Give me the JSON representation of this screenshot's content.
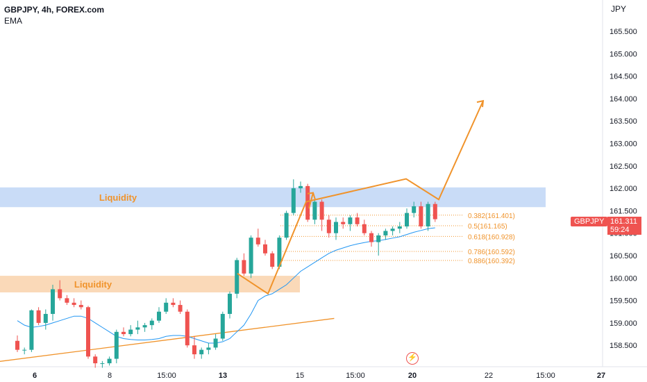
{
  "legend": {
    "symbol": "GBPJPY, 4h, FOREX.com",
    "indicator": "EMA"
  },
  "currency": "JPY",
  "symbol_tag": "GBPJPY",
  "last_price": "161.311",
  "countdown": "59:24",
  "event_icon": "bolt-icon",
  "colors": {
    "up": "#26a69a",
    "down": "#ef5350",
    "ema": "#2196f3",
    "annotation": "#f0932b",
    "zone_blue": "#bbd3f5",
    "zone_orange": "#f9cfa6"
  },
  "chart_data": {
    "type": "candlestick",
    "ylim": [
      158.3,
      166.0
    ],
    "y_ticks": [
      "165.500",
      "165.000",
      "164.500",
      "164.000",
      "163.500",
      "163.000",
      "162.500",
      "162.000",
      "161.500",
      "161.000",
      "160.500",
      "160.000",
      "159.500",
      "159.000",
      "158.500"
    ],
    "x_ticks": [
      {
        "label": "6",
        "bold": true
      },
      {
        "label": "8",
        "bold": false
      },
      {
        "label": "15:00",
        "bold": false
      },
      {
        "label": "13",
        "bold": true
      },
      {
        "label": "15",
        "bold": false
      },
      {
        "label": "15:00",
        "bold": false
      },
      {
        "label": "20",
        "bold": true
      },
      {
        "label": "22",
        "bold": false
      },
      {
        "label": "15:00",
        "bold": false
      },
      {
        "label": "27",
        "bold": true
      }
    ],
    "zones": [
      {
        "label": "Liquidity",
        "top": 162.02,
        "bottom": 161.58,
        "color": "blue"
      },
      {
        "label": "Liquidity",
        "top": 160.05,
        "bottom": 159.68,
        "color": "orange"
      }
    ],
    "fib_levels": [
      {
        "label": "0.382(161.401)",
        "value": 161.401
      },
      {
        "label": "0.5(161.165)",
        "value": 161.165
      },
      {
        "label": "0.618(160.928)",
        "value": 160.928
      },
      {
        "label": "0.786(160.592)",
        "value": 160.592
      },
      {
        "label": "0.886(160.392)",
        "value": 160.392
      }
    ],
    "candles": [
      [
        158.6,
        158.72,
        158.35,
        158.4
      ],
      [
        158.4,
        158.45,
        158.3,
        158.4
      ],
      [
        158.4,
        159.3,
        158.35,
        159.28
      ],
      [
        159.28,
        159.35,
        158.95,
        159.0
      ],
      [
        159.0,
        159.3,
        158.85,
        159.2
      ],
      [
        159.2,
        159.85,
        159.05,
        159.75
      ],
      [
        159.75,
        159.95,
        159.5,
        159.55
      ],
      [
        159.55,
        159.62,
        159.4,
        159.45
      ],
      [
        159.45,
        159.55,
        159.35,
        159.4
      ],
      [
        159.4,
        159.5,
        159.3,
        159.35
      ],
      [
        159.35,
        159.38,
        158.2,
        158.25
      ],
      [
        158.25,
        158.3,
        158.0,
        158.1
      ],
      [
        158.1,
        158.15,
        158.0,
        158.1
      ],
      [
        158.1,
        158.25,
        158.05,
        158.2
      ],
      [
        158.2,
        158.85,
        158.1,
        158.8
      ],
      [
        158.8,
        158.9,
        158.7,
        158.75
      ],
      [
        158.75,
        158.95,
        158.7,
        158.85
      ],
      [
        158.85,
        159.05,
        158.75,
        158.9
      ],
      [
        158.9,
        159.0,
        158.8,
        158.95
      ],
      [
        158.95,
        159.1,
        158.85,
        159.05
      ],
      [
        159.05,
        159.35,
        159.0,
        159.25
      ],
      [
        159.25,
        159.55,
        159.2,
        159.45
      ],
      [
        159.45,
        159.55,
        159.35,
        159.4
      ],
      [
        159.4,
        159.5,
        159.2,
        159.25
      ],
      [
        159.25,
        159.3,
        158.45,
        158.5
      ],
      [
        158.5,
        158.7,
        158.2,
        158.3
      ],
      [
        158.3,
        158.45,
        158.2,
        158.4
      ],
      [
        158.4,
        158.55,
        158.3,
        158.45
      ],
      [
        158.45,
        158.75,
        158.4,
        158.65
      ],
      [
        158.65,
        159.25,
        158.6,
        159.2
      ],
      [
        159.2,
        159.7,
        159.1,
        159.65
      ],
      [
        159.65,
        160.45,
        159.55,
        160.4
      ],
      [
        160.4,
        160.55,
        160.05,
        160.1
      ],
      [
        160.1,
        160.95,
        160.0,
        160.9
      ],
      [
        160.9,
        161.1,
        160.7,
        160.75
      ],
      [
        160.75,
        160.85,
        160.5,
        160.55
      ],
      [
        160.55,
        160.6,
        160.2,
        160.25
      ],
      [
        160.25,
        160.95,
        160.2,
        160.9
      ],
      [
        160.9,
        161.5,
        160.85,
        161.45
      ],
      [
        161.45,
        162.2,
        161.4,
        162.0
      ],
      [
        162.0,
        162.15,
        161.9,
        162.05
      ],
      [
        162.05,
        162.1,
        161.25,
        161.3
      ],
      [
        161.3,
        161.75,
        161.2,
        161.7
      ],
      [
        161.7,
        161.75,
        161.05,
        161.3
      ],
      [
        161.3,
        161.4,
        160.9,
        161.0
      ],
      [
        161.0,
        161.35,
        160.85,
        161.25
      ],
      [
        161.25,
        161.35,
        161.1,
        161.2
      ],
      [
        161.2,
        161.4,
        161.05,
        161.35
      ],
      [
        161.35,
        161.45,
        161.15,
        161.2
      ],
      [
        161.2,
        161.3,
        160.95,
        161.0
      ],
      [
        161.0,
        161.05,
        160.7,
        160.8
      ],
      [
        160.8,
        161.0,
        160.5,
        160.95
      ],
      [
        160.95,
        161.1,
        160.85,
        161.05
      ],
      [
        161.05,
        161.15,
        160.95,
        161.1
      ],
      [
        161.1,
        161.25,
        161.0,
        161.15
      ],
      [
        161.15,
        161.55,
        161.1,
        161.45
      ],
      [
        161.45,
        161.7,
        161.35,
        161.6
      ],
      [
        161.6,
        161.7,
        161.1,
        161.15
      ],
      [
        161.15,
        161.7,
        161.05,
        161.65
      ],
      [
        161.65,
        161.7,
        161.25,
        161.311
      ]
    ],
    "ema": [
      159.05,
      158.95,
      158.9,
      158.92,
      158.95,
      159.0,
      159.05,
      159.1,
      159.15,
      159.15,
      159.1,
      159.0,
      158.9,
      158.8,
      158.7,
      158.65,
      158.63,
      158.62,
      158.62,
      158.63,
      158.65,
      158.7,
      158.72,
      158.72,
      158.7,
      158.65,
      158.6,
      158.55,
      158.55,
      158.58,
      158.65,
      158.8,
      158.95,
      159.2,
      159.5,
      159.6,
      159.65,
      159.75,
      159.85,
      160.0,
      160.15,
      160.25,
      160.35,
      160.45,
      160.55,
      160.62,
      160.67,
      160.72,
      160.76,
      160.79,
      160.82,
      160.83,
      160.86,
      160.89,
      160.92,
      160.97,
      161.02,
      161.06,
      161.1,
      161.12
    ],
    "projection": [
      [
        160.1,
        -2
      ],
      [
        159.65,
        4
      ],
      [
        161.7,
        10
      ],
      [
        162.21,
        14
      ],
      [
        161.75,
        23
      ],
      [
        163.95,
        30
      ]
    ],
    "trend_line": [
      [
        158.05,
        -7
      ],
      [
        159.1,
        17
      ]
    ]
  }
}
